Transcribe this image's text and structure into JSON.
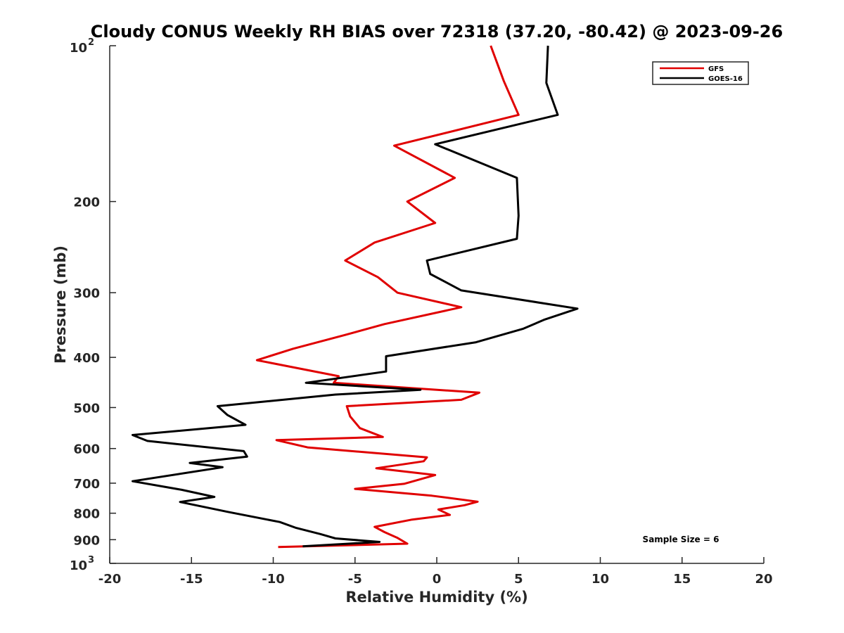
{
  "chart_data": {
    "type": "line",
    "title": "Cloudy CONUS Weekly RH BIAS over 72318 (37.20, -80.42) @ 2023-09-26",
    "xlabel": "Relative Humidity (%)",
    "ylabel": "Pressure (mb)",
    "xlim": [
      -20,
      20
    ],
    "ylim": [
      100,
      1000
    ],
    "yscale": "log",
    "y_reversed": true,
    "x_ticks": [
      "-20",
      "-15",
      "-10",
      "-5",
      "0",
      "5",
      "10",
      "15",
      "20"
    ],
    "x_tick_values": [
      -20,
      -15,
      -10,
      -5,
      0,
      5,
      10,
      15,
      20
    ],
    "y_ticks": [
      {
        "value": 100,
        "base": "10",
        "exp": "2"
      },
      {
        "value": 200,
        "label": "200"
      },
      {
        "value": 300,
        "label": "300"
      },
      {
        "value": 400,
        "label": "400"
      },
      {
        "value": 500,
        "label": "500"
      },
      {
        "value": 600,
        "label": "600"
      },
      {
        "value": 700,
        "label": "700"
      },
      {
        "value": 800,
        "label": "800"
      },
      {
        "value": 900,
        "label": "900"
      },
      {
        "value": 1000,
        "base": "10",
        "exp": "3"
      }
    ],
    "legend_position": "top-right",
    "annotation": "Sample Size = 6",
    "series": [
      {
        "name": "GFS",
        "color": "#e00000",
        "x": [
          3.3,
          4.1,
          5.0,
          -2.6,
          1.1,
          -1.8,
          -0.1,
          -3.8,
          -5.6,
          -3.6,
          -2.4,
          1.5,
          -3.2,
          -5.6,
          -8.8,
          -11.0,
          -6.0,
          -6.3,
          2.6,
          1.5,
          -5.5,
          -5.3,
          -4.7,
          -3.3,
          -9.8,
          -7.9,
          -0.6,
          -0.8,
          -3.7,
          -0.1,
          -2.0,
          -5.0,
          -0.3,
          2.5,
          1.7,
          0.1,
          0.8,
          -1.5,
          -3.8,
          -3.2,
          -2.4,
          -1.8,
          -9.7
        ],
        "y": [
          100,
          117,
          136,
          156,
          180,
          200,
          220,
          240,
          260,
          280,
          300,
          320,
          345,
          362,
          385,
          405,
          435,
          448,
          468,
          483,
          497,
          520,
          548,
          570,
          578,
          597,
          624,
          635,
          655,
          675,
          702,
          718,
          740,
          760,
          772,
          787,
          806,
          823,
          850,
          870,
          893,
          916,
          930
        ]
      },
      {
        "name": "GOES-16",
        "color": "#000000",
        "x": [
          6.8,
          6.7,
          7.4,
          -0.1,
          4.9,
          5.0,
          4.9,
          -0.6,
          -0.4,
          1.5,
          8.6,
          6.6,
          5.3,
          2.4,
          -3.1,
          -3.1,
          -8.0,
          -1.0,
          -6.2,
          -13.4,
          -12.8,
          -11.7,
          -18.6,
          -17.7,
          -11.8,
          -11.6,
          -15.1,
          -13.1,
          -18.6,
          -15.6,
          -13.6,
          -15.7,
          -12.8,
          -9.6,
          -8.6,
          -7.1,
          -6.2,
          -3.5,
          -8.2
        ],
        "y": [
          100,
          118,
          136,
          155,
          180,
          213,
          236,
          260,
          276,
          297,
          322,
          338,
          352,
          374,
          398,
          426,
          448,
          462,
          472,
          497,
          517,
          540,
          565,
          580,
          607,
          622,
          640,
          652,
          694,
          721,
          744,
          761,
          795,
          832,
          854,
          878,
          895,
          909,
          927
        ]
      }
    ]
  }
}
